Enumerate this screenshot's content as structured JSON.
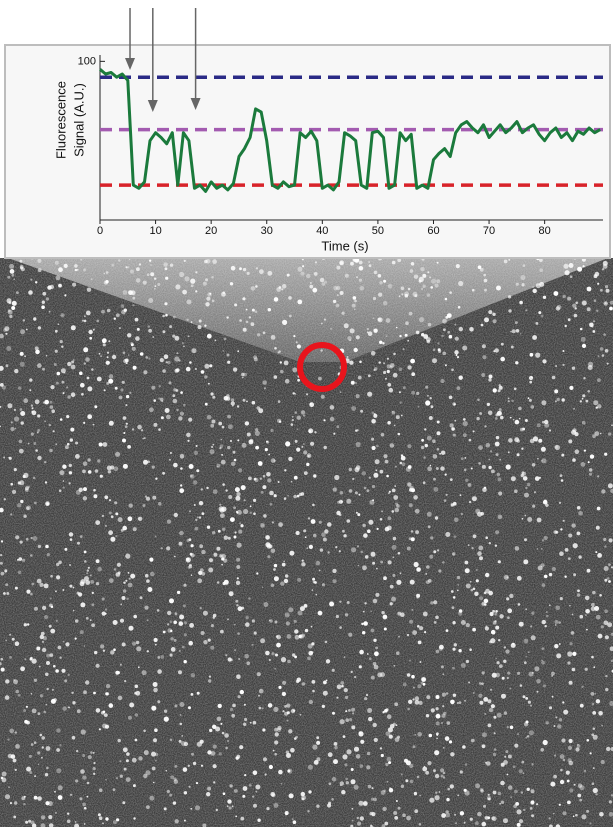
{
  "chart_data": {
    "type": "line",
    "ylabel": [
      "Fluorescence",
      "Signal (A.U.)"
    ],
    "xlabel": "Time (s)",
    "x": [
      0,
      1,
      2,
      3,
      4,
      5,
      6,
      7,
      8,
      9,
      10,
      11,
      12,
      13,
      14,
      15,
      16,
      17,
      18,
      19,
      20,
      21,
      22,
      23,
      24,
      25,
      26,
      27,
      28,
      29,
      30,
      31,
      32,
      33,
      34,
      35,
      36,
      37,
      38,
      39,
      40,
      41,
      42,
      43,
      44,
      45,
      46,
      47,
      48,
      49,
      50,
      51,
      52,
      53,
      54,
      55,
      56,
      57,
      58,
      59,
      60,
      61,
      62,
      63,
      64,
      65,
      66,
      67,
      68,
      69,
      70,
      71,
      72,
      73,
      74,
      75,
      76,
      77,
      78,
      79,
      80,
      81,
      82,
      83,
      84,
      85,
      86,
      87,
      88,
      89,
      90
    ],
    "values": [
      95,
      92,
      93,
      90,
      92,
      88,
      22,
      20,
      24,
      50,
      55,
      52,
      48,
      55,
      22,
      55,
      50,
      20,
      22,
      18,
      24,
      20,
      22,
      19,
      23,
      40,
      45,
      52,
      70,
      68,
      50,
      22,
      20,
      24,
      21,
      22,
      55,
      52,
      56,
      50,
      20,
      22,
      19,
      24,
      55,
      53,
      50,
      22,
      20,
      55,
      56,
      52,
      20,
      22,
      55,
      50,
      54,
      20,
      22,
      20,
      38,
      42,
      45,
      40,
      55,
      60,
      62,
      58,
      55,
      60,
      52,
      56,
      60,
      55,
      58,
      62,
      55,
      58,
      60,
      54,
      50,
      55,
      58,
      52,
      55,
      50,
      56,
      54,
      58,
      55,
      57
    ],
    "color": "#1b7a3c",
    "reference_lines": [
      {
        "value": 90,
        "color": "#2a2a86"
      },
      {
        "value": 57,
        "color": "#a35bb0"
      },
      {
        "value": 22,
        "color": "#d8232a"
      }
    ],
    "arrow_times": [
      5.4,
      9.5,
      17.2
    ],
    "xlim": [
      0,
      90.5
    ],
    "ylim": [
      0,
      104
    ],
    "xticks": [
      0,
      10,
      20,
      30,
      40,
      50,
      60,
      70,
      80
    ],
    "yticks": [
      100
    ]
  }
}
